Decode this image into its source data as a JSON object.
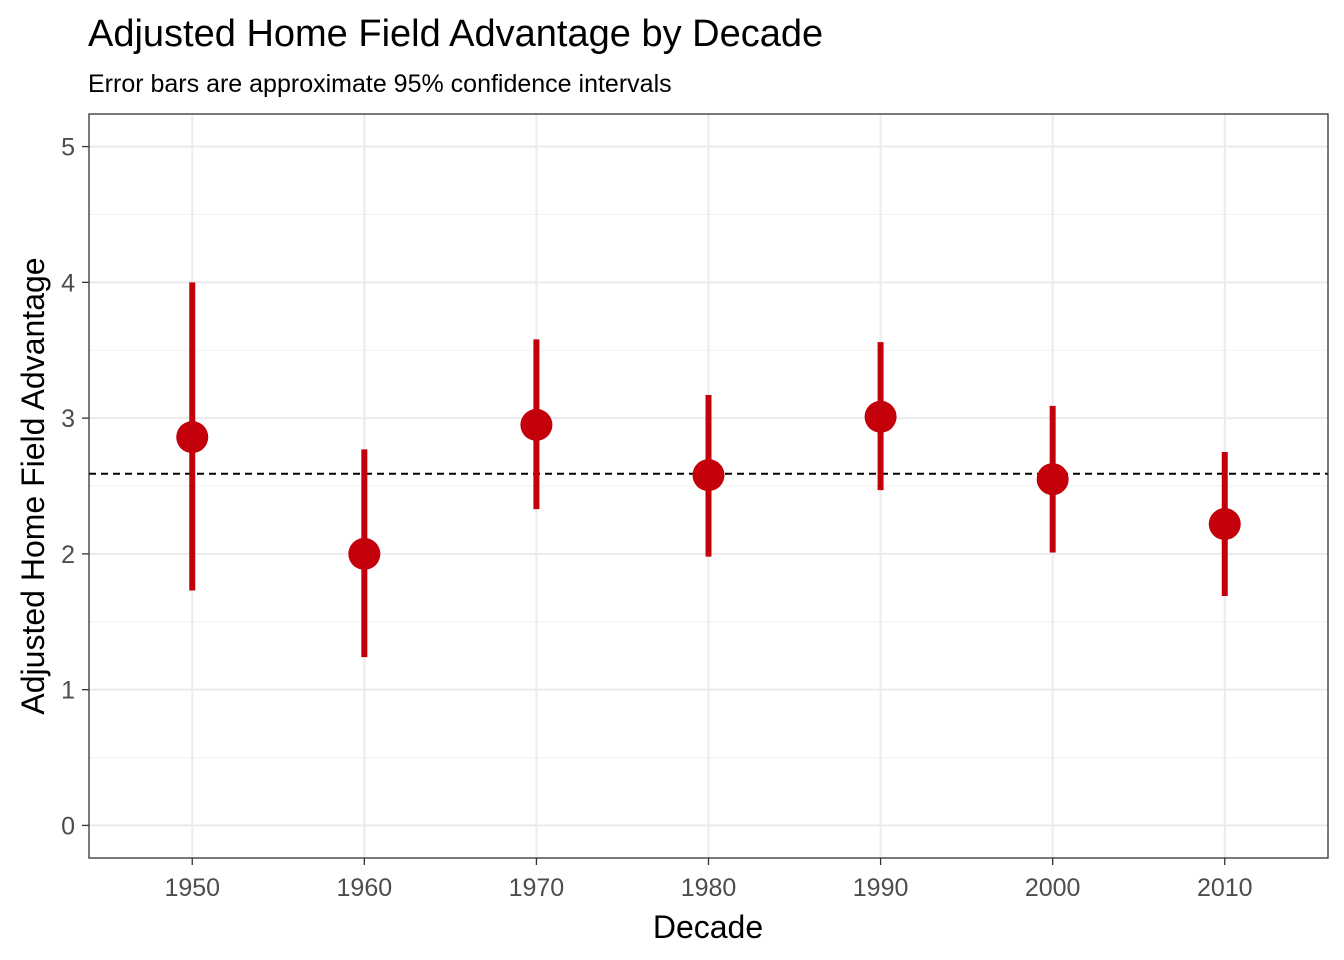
{
  "chart_data": {
    "type": "scatter",
    "title": "Adjusted Home Field Advantage by Decade",
    "subtitle": "Error bars are approximate 95% confidence intervals",
    "xlabel": "Decade",
    "ylabel": "Adjusted Home Field Advantage",
    "categories": [
      "1950",
      "1960",
      "1970",
      "1980",
      "1990",
      "2000",
      "2010"
    ],
    "series": [
      {
        "values": [
          2.86,
          2.0,
          2.95,
          2.58,
          3.01,
          2.55,
          2.22
        ],
        "lower": [
          1.73,
          1.24,
          2.33,
          1.98,
          2.47,
          2.01,
          1.69
        ],
        "upper": [
          4.0,
          2.77,
          3.58,
          3.17,
          3.56,
          3.09,
          2.75
        ],
        "color": "#c4000b"
      }
    ],
    "reference_line": {
      "y": 2.59,
      "style": "dashed",
      "color": "#000000"
    },
    "ylim": [
      -0.24,
      5.24
    ],
    "yticks": [
      0,
      1,
      2,
      3,
      4,
      5
    ],
    "grid": true
  }
}
